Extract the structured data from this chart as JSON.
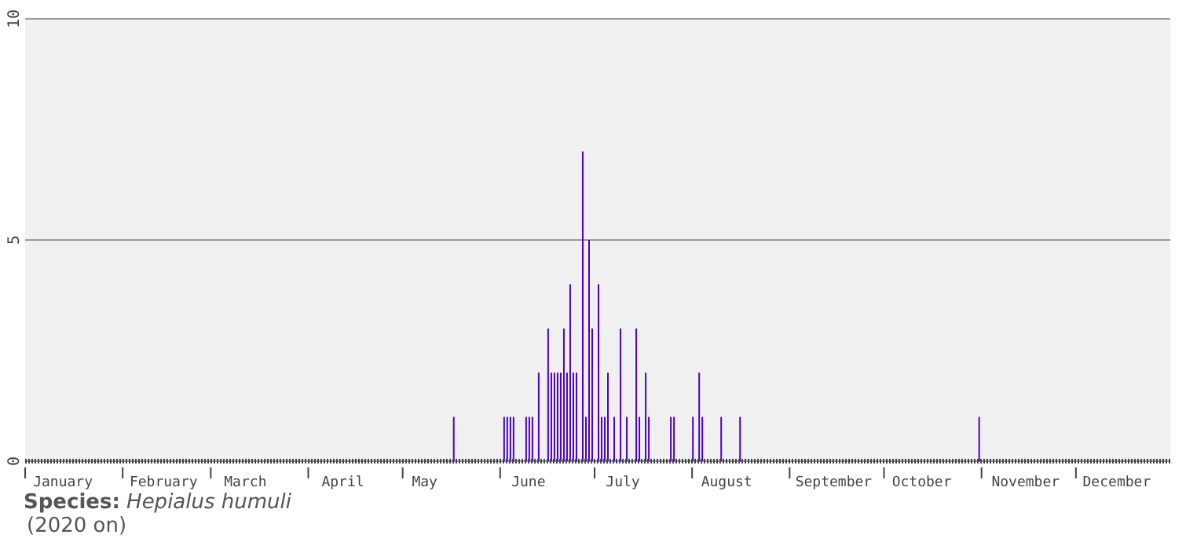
{
  "chart_data": {
    "type": "bar",
    "title": "Species: Hepialus humuli",
    "subtitle": "(2020 on)",
    "x": [
      "--05-17",
      "--06-02",
      "--06-03",
      "--06-04",
      "--06-05",
      "--06-09",
      "--06-10",
      "--06-11",
      "--06-13",
      "--06-16",
      "--06-17",
      "--06-18",
      "--06-19",
      "--06-20",
      "--06-21",
      "--06-22",
      "--06-23",
      "--06-24",
      "--06-25",
      "--06-27",
      "--06-28",
      "--06-29",
      "--06-30",
      "--07-02",
      "--07-03",
      "--07-04",
      "--07-05",
      "--07-07",
      "--07-09",
      "--07-11",
      "--07-14",
      "--07-15",
      "--07-17",
      "--07-18",
      "--07-25",
      "--07-26",
      "--08-01",
      "--08-03",
      "--08-04",
      "--08-10",
      "--08-16",
      "--10-31"
    ],
    "values": [
      1,
      1,
      1,
      1,
      1,
      1,
      1,
      1,
      2,
      3,
      2,
      2,
      2,
      2,
      3,
      2,
      4,
      2,
      2,
      7,
      1,
      5,
      3,
      4,
      1,
      1,
      2,
      1,
      3,
      1,
      3,
      1,
      2,
      1,
      1,
      1,
      1,
      2,
      1,
      1,
      1,
      1
    ],
    "color": "#4a00c8",
    "xlim": [
      "--01-01",
      "--12-31"
    ],
    "xticks": [
      {
        "value": "--01-01",
        "label": null
      },
      {
        "value": "--01-13",
        "label": "January"
      },
      {
        "value": "--02-01",
        "label": null
      },
      {
        "value": "--02-14",
        "label": "February"
      },
      {
        "value": "--03-01",
        "label": null
      },
      {
        "value": "--03-12",
        "label": "March"
      },
      {
        "value": "--04-01",
        "label": null
      },
      {
        "value": "--04-12",
        "label": "April"
      },
      {
        "value": "--05-01",
        "label": null
      },
      {
        "value": "--05-08",
        "label": "May"
      },
      {
        "value": "--06-01",
        "label": null
      },
      {
        "value": "--06-10",
        "label": "June"
      },
      {
        "value": "--07-01",
        "label": null
      },
      {
        "value": "--07-10",
        "label": "July"
      },
      {
        "value": "--08-01",
        "label": null
      },
      {
        "value": "--08-12",
        "label": "August"
      },
      {
        "value": "--09-01",
        "label": null
      },
      {
        "value": "--09-15",
        "label": "September"
      },
      {
        "value": "--10-01",
        "label": null
      },
      {
        "value": "--10-13",
        "label": "October"
      },
      {
        "value": "--11-01",
        "label": null
      },
      {
        "value": "--11-15",
        "label": "November"
      },
      {
        "value": "--12-01",
        "label": null
      },
      {
        "value": "--12-14",
        "label": "December"
      }
    ],
    "ylim": [
      0,
      10
    ],
    "yticks": [
      0,
      5,
      10
    ],
    "grid": "y",
    "legend": false
  }
}
